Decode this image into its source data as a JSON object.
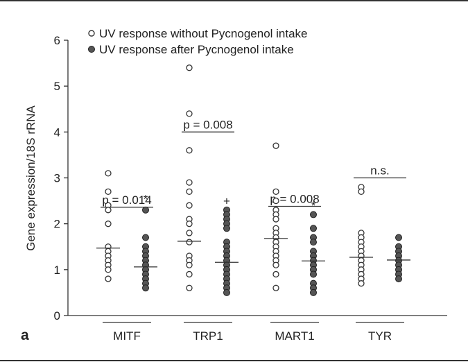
{
  "panel_label": "a",
  "chart_data": {
    "type": "scatter",
    "title": "",
    "xlabel": "",
    "ylabel": "Gene expression/18S rRNA",
    "ylim": [
      0,
      6
    ],
    "yticks": [
      0,
      1,
      2,
      3,
      4,
      5,
      6
    ],
    "grid": false,
    "legend_placement": "top-left",
    "categories": [
      "MITF",
      "TRP1",
      "MART1",
      "TYR"
    ],
    "series": [
      {
        "name": "UV response without Pycnogenol intake",
        "marker": "open-circle",
        "color": "#333333",
        "groups": [
          {
            "category": "MITF",
            "values": [
              3.1,
              2.7,
              2.4,
              2.3,
              2.0,
              1.5,
              1.4,
              1.3,
              1.2,
              1.1,
              1.0,
              0.8
            ],
            "median": 1.47
          },
          {
            "category": "TRP1",
            "values": [
              5.4,
              4.4,
              3.6,
              2.9,
              2.7,
              2.4,
              2.1,
              2.0,
              1.8,
              1.6,
              1.3,
              1.2,
              1.1,
              0.9,
              0.6
            ],
            "median": 1.62
          },
          {
            "category": "MART1",
            "values": [
              3.7,
              2.7,
              2.5,
              2.3,
              2.2,
              2.1,
              1.9,
              1.8,
              1.7,
              1.6,
              1.5,
              1.4,
              1.3,
              1.2,
              1.1,
              0.9,
              0.6
            ],
            "median": 1.68
          },
          {
            "category": "TYR",
            "values": [
              2.8,
              2.7,
              1.8,
              1.7,
              1.6,
              1.5,
              1.4,
              1.3,
              1.2,
              1.1,
              1.0,
              0.9,
              0.8,
              0.7
            ],
            "median": 1.27
          }
        ]
      },
      {
        "name": "UV response after Pycnogenol intake",
        "marker": "filled-circle",
        "color": "#555555",
        "groups": [
          {
            "category": "MITF",
            "values": [
              2.3,
              1.7,
              1.5,
              1.4,
              1.3,
              1.2,
              1.1,
              1.0,
              0.9,
              0.8,
              0.7,
              0.6
            ],
            "median": 1.06
          },
          {
            "category": "TRP1",
            "values": [
              2.3,
              2.2,
              2.1,
              2.0,
              1.9,
              1.6,
              1.5,
              1.4,
              1.3,
              1.2,
              1.1,
              1.0,
              0.9,
              0.8,
              0.7,
              0.6,
              0.5
            ],
            "median": 1.16
          },
          {
            "category": "MART1",
            "values": [
              2.2,
              1.9,
              1.7,
              1.6,
              1.4,
              1.3,
              1.2,
              1.1,
              1.0,
              0.9,
              0.7,
              0.6,
              0.5
            ],
            "median": 1.19
          },
          {
            "category": "TYR",
            "values": [
              1.7,
              1.5,
              1.4,
              1.3,
              1.2,
              1.1,
              1.0,
              0.9,
              0.8
            ],
            "median": 1.21
          }
        ]
      }
    ],
    "annotations": [
      {
        "category": "MITF",
        "text": "p = 0.014",
        "y": 2.36
      },
      {
        "category": "TRP1",
        "text": "p = 0.008",
        "y": 4.0
      },
      {
        "category": "MART1",
        "text": "p = 0.008",
        "y": 2.38
      },
      {
        "category": "TYR",
        "text": "n.s.",
        "y": 3.0
      }
    ],
    "markers": [
      {
        "category": "MITF",
        "text": "*",
        "y": 2.55
      },
      {
        "category": "TRP1",
        "text": "+",
        "y": 2.5
      },
      {
        "category": "MART1",
        "text": "*",
        "y": 2.4
      }
    ]
  }
}
